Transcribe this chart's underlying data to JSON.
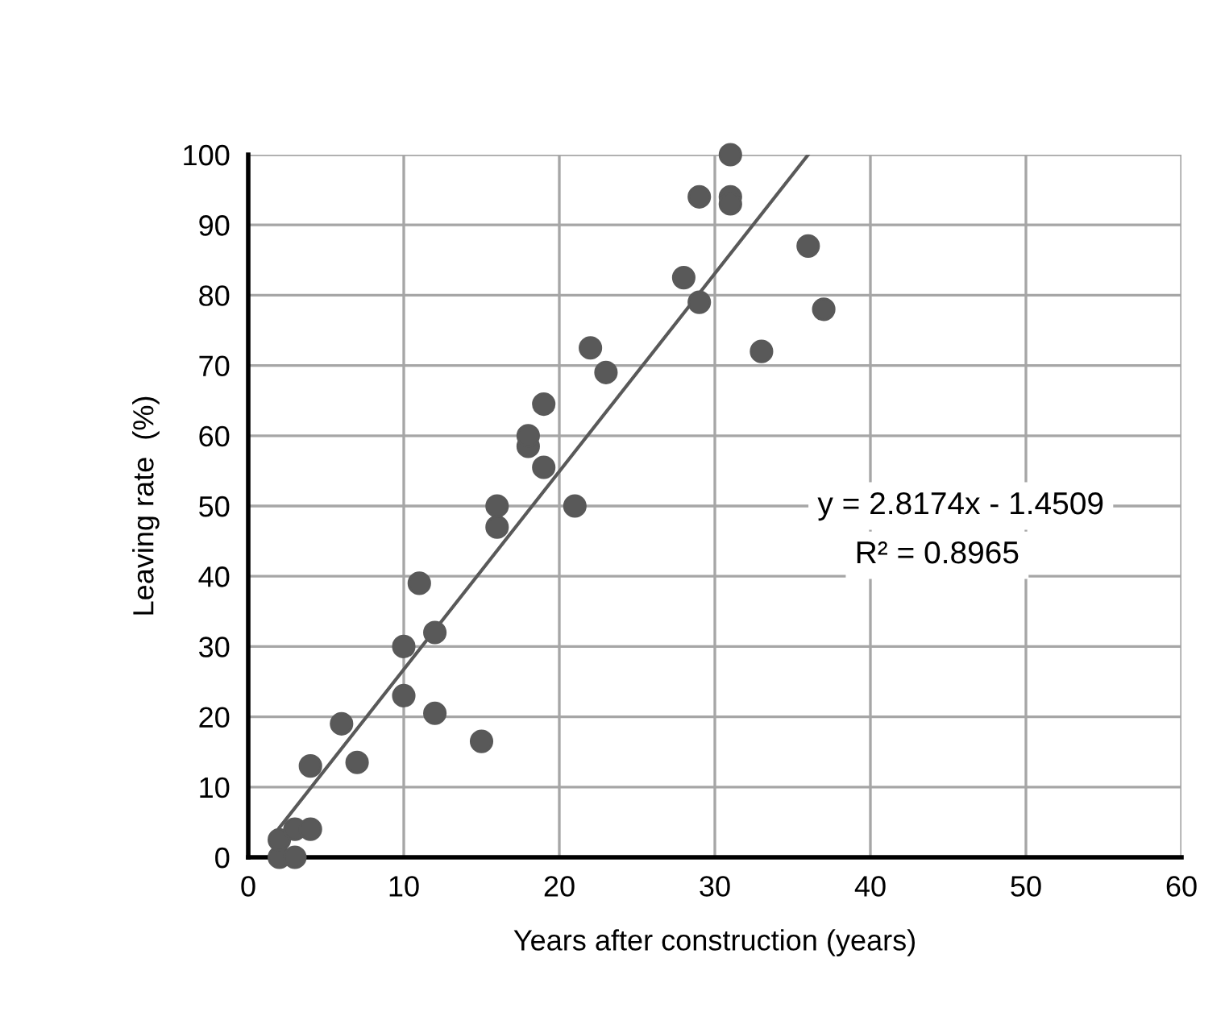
{
  "chart_data": {
    "type": "scatter",
    "xlabel": "Years after construction (years)",
    "ylabel": "Leaving rate  (%)",
    "xlim": [
      0,
      60
    ],
    "xticks": [
      0,
      10,
      20,
      30,
      40,
      50,
      60
    ],
    "ylim": [
      0,
      100
    ],
    "yticks": [
      0,
      10,
      20,
      30,
      40,
      50,
      60,
      70,
      80,
      90,
      100
    ],
    "grid": true,
    "marker": "circle",
    "annotations": [
      "y = 2.8174x - 1.4509",
      "R² = 0.8965"
    ],
    "series": [
      {
        "color": "#595959",
        "x": [
          2,
          3,
          2,
          3,
          4,
          4,
          7,
          6,
          10,
          12,
          15,
          10,
          12,
          11,
          16,
          16,
          21,
          19,
          18,
          18,
          19,
          22,
          23,
          28,
          29,
          29,
          31,
          31,
          31,
          33,
          36,
          37
        ],
        "values": [
          0,
          0,
          2.5,
          4,
          4,
          13,
          13.5,
          19,
          23,
          20.5,
          16.5,
          30,
          32,
          39,
          47,
          50,
          50,
          55.5,
          58.5,
          60,
          64.5,
          72.5,
          69,
          82.5,
          79,
          94,
          100,
          94,
          93,
          72,
          87,
          78
        ]
      },
      {
        "type": "line",
        "color": "#595959",
        "x": [
          2,
          36
        ],
        "values": [
          4.2,
          100
        ],
        "line_style": "solid",
        "marker": "none"
      }
    ]
  }
}
